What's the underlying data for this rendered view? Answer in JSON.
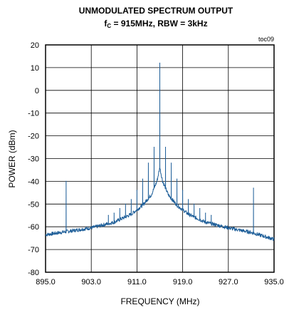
{
  "chart_data": {
    "type": "line",
    "title": "UNMODULATED SPECTRUM OUTPUT",
    "subtitle_prefix": "f",
    "subtitle_sub": "C",
    "subtitle_rest": " = 915MHz, RBW = 3kHz",
    "tag": "toc09",
    "xlabel": "FREQUENCY (MHz)",
    "ylabel": "POWER (dBm)",
    "xlim": [
      895.0,
      935.0
    ],
    "ylim": [
      -80,
      20
    ],
    "xticks": [
      895.0,
      903.0,
      911.0,
      919.0,
      927.0,
      935.0
    ],
    "xtick_labels": [
      "895.0",
      "903.0",
      "911.0",
      "919.0",
      "927.0",
      "935.0"
    ],
    "yticks": [
      20,
      10,
      0,
      -10,
      -20,
      -30,
      -40,
      -50,
      -60,
      -70,
      -80
    ],
    "ytick_labels": [
      "20",
      "10",
      "0",
      "-10",
      "-20",
      "-30",
      "-40",
      "-50",
      "-60",
      "-70",
      "-80"
    ],
    "grid": true,
    "line_color": "#1f5f99",
    "series": [
      {
        "noise_floor": [
          [
            895.0,
            -63.5
          ],
          [
            899.0,
            -62.0
          ],
          [
            903.0,
            -60.5
          ],
          [
            907.0,
            -58.0
          ],
          [
            910.0,
            -54.5
          ],
          [
            912.0,
            -50.5
          ],
          [
            913.5,
            -46.0
          ],
          [
            914.5,
            -40.0
          ],
          [
            915.0,
            -34.0
          ],
          [
            915.5,
            -40.0
          ],
          [
            916.5,
            -46.0
          ],
          [
            918.0,
            -50.5
          ],
          [
            920.0,
            -54.5
          ],
          [
            923.0,
            -58.0
          ],
          [
            927.0,
            -60.5
          ],
          [
            931.0,
            -62.5
          ],
          [
            935.0,
            -65.5
          ]
        ],
        "peaks": [
          [
            915.0,
            12.0
          ],
          [
            914.0,
            -25.0
          ],
          [
            916.0,
            -25.0
          ],
          [
            913.0,
            -32.0
          ],
          [
            917.0,
            -32.0
          ],
          [
            912.0,
            -39.0
          ],
          [
            918.0,
            -39.0
          ],
          [
            911.0,
            -44.0
          ],
          [
            919.0,
            -44.0
          ],
          [
            910.0,
            -48.0
          ],
          [
            920.0,
            -48.0
          ],
          [
            909.0,
            -50.0
          ],
          [
            921.0,
            -50.0
          ],
          [
            908.0,
            -52.0
          ],
          [
            922.0,
            -52.0
          ],
          [
            907.0,
            -54.0
          ],
          [
            923.0,
            -54.0
          ],
          [
            906.0,
            -55.0
          ],
          [
            924.0,
            -55.0
          ],
          [
            898.6,
            -40.0
          ],
          [
            931.4,
            -43.0
          ]
        ]
      }
    ]
  }
}
